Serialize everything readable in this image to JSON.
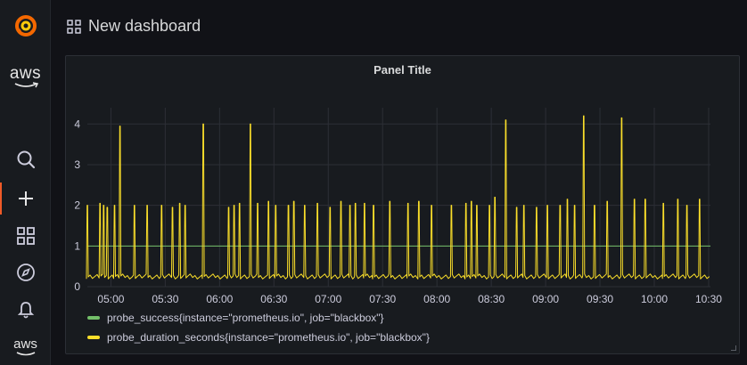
{
  "sidebar": {
    "items": [
      {
        "icon": "grafana-logo-icon"
      },
      {
        "icon": "aws-logo-icon",
        "text": "aws"
      },
      {
        "icon": "search-icon"
      },
      {
        "icon": "plus-icon"
      },
      {
        "icon": "dashboards-icon"
      },
      {
        "icon": "explore-compass-icon"
      },
      {
        "icon": "alerting-bell-icon"
      },
      {
        "icon": "aws-logo-icon",
        "text": "aws"
      }
    ],
    "accent": "#f05a28"
  },
  "header": {
    "title": "New dashboard"
  },
  "panel": {
    "title": "Panel Title"
  },
  "colors": {
    "success": "#73bf69",
    "duration": "#fade2a",
    "grid": "#2c2f36"
  },
  "chart_data": {
    "type": "line",
    "title": "Panel Title",
    "x_ticks": [
      "05:00",
      "05:30",
      "06:00",
      "06:30",
      "07:00",
      "07:30",
      "08:00",
      "08:30",
      "09:00",
      "09:30",
      "10:00",
      "10:30"
    ],
    "x_range": [
      "04:47",
      "10:31"
    ],
    "ylim": [
      0,
      4.4
    ],
    "y_ticks": [
      0,
      1,
      2,
      3,
      4
    ],
    "grid": true,
    "legend_placement": "bottom-left",
    "series": [
      {
        "name": "probe_success{instance=\"prometheus.io\", job=\"blackbox\"}",
        "color": "#73bf69",
        "baseline": 1,
        "x": [
          "04:47",
          "10:31"
        ],
        "values": [
          1,
          1
        ]
      },
      {
        "name": "probe_duration_seconds{instance=\"prometheus.io\", job=\"blackbox\"}",
        "color": "#fade2a",
        "baseline": 0.25,
        "spikes": [
          [
            "04:47",
            2.0
          ],
          [
            "04:54",
            2.05
          ],
          [
            "04:56",
            2.0
          ],
          [
            "04:58",
            1.95
          ],
          [
            "05:02",
            2.0
          ],
          [
            "05:05",
            3.95
          ],
          [
            "05:13",
            2.0
          ],
          [
            "05:20",
            2.0
          ],
          [
            "05:28",
            2.0
          ],
          [
            "05:34",
            1.95
          ],
          [
            "05:38",
            2.05
          ],
          [
            "05:41",
            2.0
          ],
          [
            "05:51",
            4.0
          ],
          [
            "06:05",
            1.95
          ],
          [
            "06:08",
            2.0
          ],
          [
            "06:11",
            2.05
          ],
          [
            "06:17",
            4.0
          ],
          [
            "06:21",
            2.05
          ],
          [
            "06:27",
            2.1
          ],
          [
            "06:31",
            2.0
          ],
          [
            "06:38",
            2.0
          ],
          [
            "06:41",
            2.1
          ],
          [
            "06:47",
            2.0
          ],
          [
            "06:54",
            2.05
          ],
          [
            "07:01",
            1.95
          ],
          [
            "07:07",
            2.1
          ],
          [
            "07:12",
            2.0
          ],
          [
            "07:15",
            2.05
          ],
          [
            "07:20",
            2.05
          ],
          [
            "07:25",
            2.0
          ],
          [
            "07:34",
            2.1
          ],
          [
            "07:44",
            2.05
          ],
          [
            "07:50",
            2.1
          ],
          [
            "07:57",
            2.0
          ],
          [
            "08:08",
            2.0
          ],
          [
            "08:16",
            2.05
          ],
          [
            "08:19",
            2.1
          ],
          [
            "08:22",
            2.0
          ],
          [
            "08:29",
            2.0
          ],
          [
            "08:32",
            2.2
          ],
          [
            "08:38",
            4.1
          ],
          [
            "08:44",
            1.95
          ],
          [
            "08:48",
            2.0
          ],
          [
            "08:55",
            1.95
          ],
          [
            "09:01",
            2.0
          ],
          [
            "09:08",
            2.0
          ],
          [
            "09:12",
            2.15
          ],
          [
            "09:16",
            2.0
          ],
          [
            "09:21",
            4.2
          ],
          [
            "09:27",
            2.0
          ],
          [
            "09:34",
            2.1
          ],
          [
            "09:42",
            4.15
          ],
          [
            "09:49",
            2.15
          ],
          [
            "09:55",
            2.15
          ],
          [
            "10:05",
            2.05
          ],
          [
            "10:13",
            2.15
          ],
          [
            "10:18",
            2.0
          ],
          [
            "10:25",
            2.15
          ]
        ]
      }
    ]
  }
}
